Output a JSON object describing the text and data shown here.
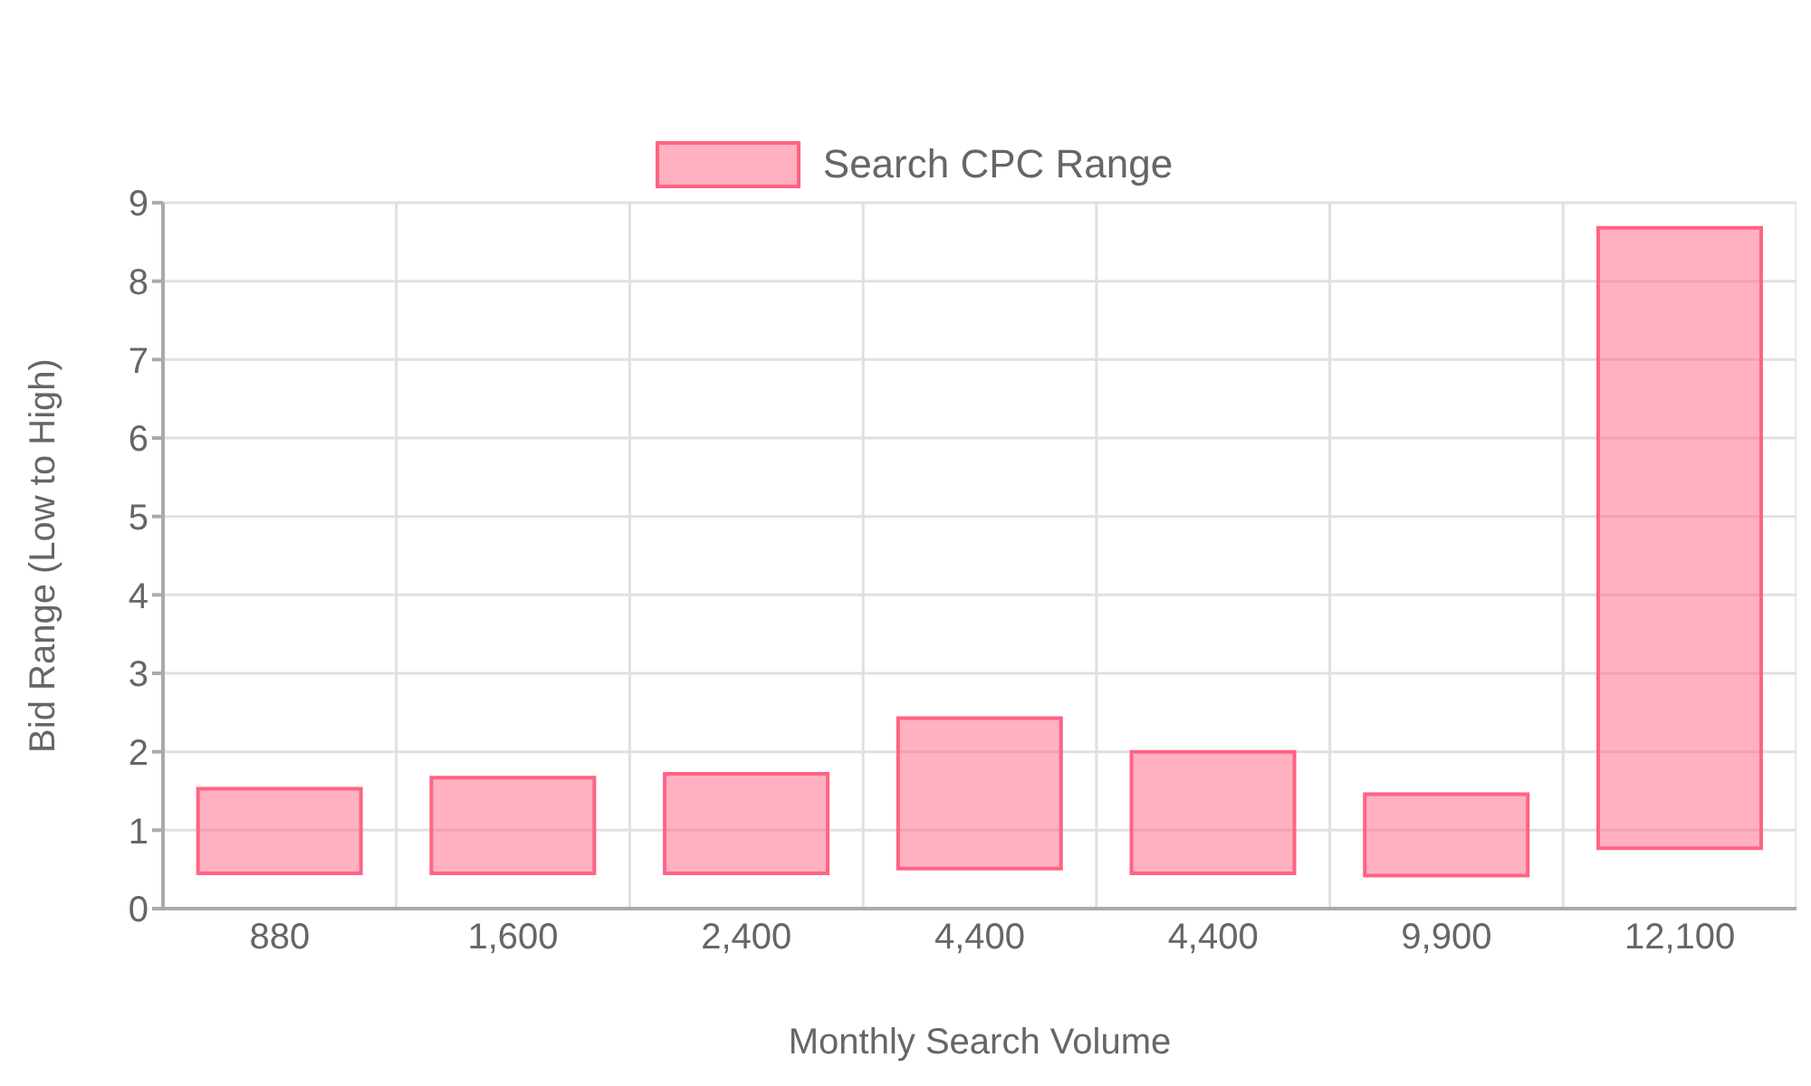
{
  "chart_data": {
    "type": "bar",
    "xlabel": "Monthly Search Volume",
    "ylabel": "Bid Range (Low to High)",
    "categories": [
      "880",
      "1,600",
      "2,400",
      "4,400",
      "4,400",
      "9,900",
      "12,100"
    ],
    "series": [
      {
        "name": "Search CPC Range",
        "color": "#ff6384",
        "values": [
          1.08,
          1.22,
          1.27,
          1.92,
          1.55,
          1.04,
          7.91
        ],
        "base": [
          0.45,
          0.45,
          0.45,
          0.51,
          0.45,
          0.42,
          0.77
        ]
      }
    ],
    "ylim": [
      0,
      9
    ],
    "yticks": [
      0,
      1,
      2,
      3,
      4,
      5,
      6,
      7,
      8,
      9
    ],
    "grid": true,
    "legend": "top"
  }
}
